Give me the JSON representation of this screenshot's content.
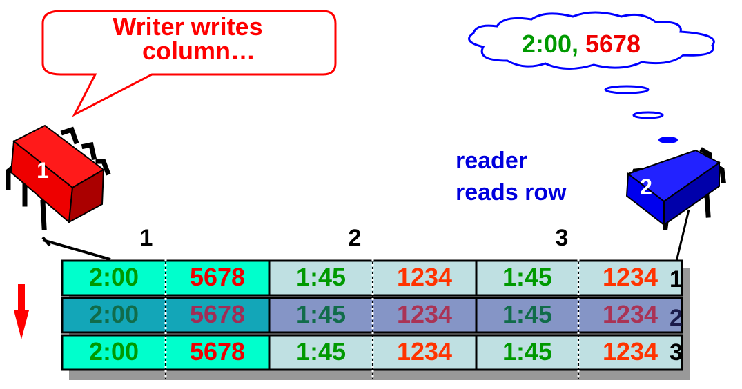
{
  "writer_callout": {
    "line1": "Writer writes",
    "line2": "column…"
  },
  "thought": {
    "time": "2:00",
    "separator": ", ",
    "value": "5678"
  },
  "reader_caption": {
    "line1": "reader",
    "line2": "reads row"
  },
  "writer_chip": {
    "label": "1",
    "icon": "ic-chip-icon",
    "color": "#ff0000"
  },
  "reader_chip": {
    "label": "2",
    "icon": "ic-chip-icon",
    "color": "#0000ff"
  },
  "column_headers": [
    "1",
    "2",
    "3"
  ],
  "row_labels": [
    "1",
    "2",
    "3"
  ],
  "table": {
    "rows": [
      [
        {
          "text": "2:00",
          "state": "new"
        },
        {
          "text": "5678",
          "state": "new"
        },
        {
          "text": "1:45",
          "state": "old"
        },
        {
          "text": "1234",
          "state": "old"
        },
        {
          "text": "1:45",
          "state": "old"
        },
        {
          "text": "1234",
          "state": "old"
        }
      ],
      [
        {
          "text": "2:00",
          "state": "new-read"
        },
        {
          "text": "5678",
          "state": "new-read"
        },
        {
          "text": "1:45",
          "state": "old-read"
        },
        {
          "text": "1234",
          "state": "old-read"
        },
        {
          "text": "1:45",
          "state": "old-read"
        },
        {
          "text": "1234",
          "state": "old-read"
        }
      ],
      [
        {
          "text": "2:00",
          "state": "new"
        },
        {
          "text": "5678",
          "state": "new"
        },
        {
          "text": "1:45",
          "state": "old"
        },
        {
          "text": "1234",
          "state": "old"
        },
        {
          "text": "1:45",
          "state": "old"
        },
        {
          "text": "1234",
          "state": "old"
        }
      ]
    ]
  },
  "colors": {
    "new_fill": "#00ffcc",
    "new_read_fill": "#13a6b8",
    "old_fill": "#bfe0e2",
    "old_read_fill": "#8595c6",
    "time_text": "#009900",
    "time_text_read": "#116c4a",
    "value_new_text": "#ee0000",
    "value_new_read_text": "#a12c55",
    "value_old_text": "#ff3300",
    "value_old_read_text": "#aa3355",
    "callout_text": "#ff0000",
    "reader_text": "#0000dd",
    "thought_stroke": "#0000ff",
    "arrow": "#ff0000"
  }
}
